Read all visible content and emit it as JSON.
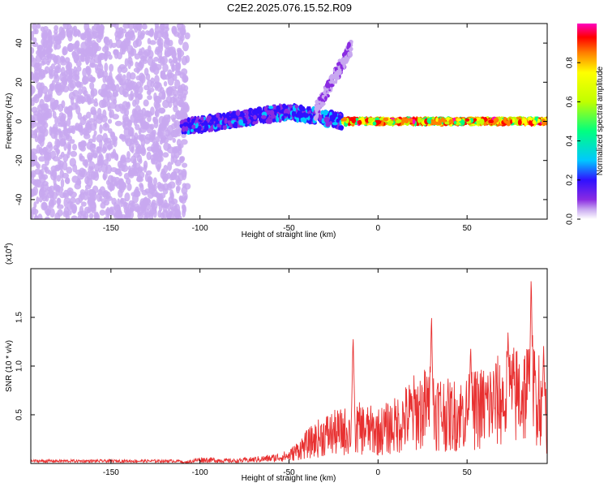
{
  "figure_title": "C2E2.2025.076.15.52.R09",
  "chart_data": [
    {
      "type": "heatmap",
      "title": "",
      "xlabel": "Height of straight line (km)",
      "ylabel": "Frequency (Hz)",
      "xlim": [
        -195,
        95
      ],
      "ylim": [
        -50,
        50
      ],
      "x_ticks": [
        -150,
        -100,
        -50,
        0,
        50
      ],
      "y_ticks": [
        -40,
        -20,
        0,
        20,
        40
      ],
      "colorbar": {
        "label": "Normalized spectral amplitude",
        "range": [
          0,
          1
        ],
        "ticks": [
          0.0,
          0.2,
          0.4,
          0.6,
          0.8
        ],
        "colors": [
          "#ffffff",
          "#c8a8f0",
          "#8a2be2",
          "#3010ff",
          "#00c8ff",
          "#00ff80",
          "#c0ff00",
          "#ffff00",
          "#ff8000",
          "#ff0000",
          "#ff00c0"
        ]
      },
      "regions": [
        {
          "desc": "noise",
          "x": [
            -195,
            -107
          ],
          "freq": [
            -50,
            50
          ],
          "amplitude": 0.1
        },
        {
          "desc": "streak",
          "x": [
            -110,
            -50
          ],
          "freq_center": [
            -3,
            5
          ],
          "amplitude": 0.3
        },
        {
          "desc": "streak",
          "x": [
            -50,
            -20
          ],
          "freq_center": [
            5,
            0
          ],
          "amplitude": 0.35
        },
        {
          "desc": "branch",
          "x": [
            -35,
            -15
          ],
          "freq_center": [
            5,
            38
          ],
          "amplitude": 0.15
        },
        {
          "desc": "line",
          "x": [
            -20,
            95
          ],
          "freq_center": [
            0,
            0
          ],
          "amplitude": 0.8
        }
      ]
    },
    {
      "type": "line",
      "title": "",
      "xlabel": "Height of straight line (km)",
      "ylabel": "SNR (10 * v/v)",
      "y_multiplier": "(x10",
      "y_multiplier_exp": "4",
      "y_multiplier_close": ")",
      "xlim": [
        -195,
        95
      ],
      "ylim": [
        0,
        2.0
      ],
      "x_ticks": [
        -150,
        -100,
        -50,
        0,
        50
      ],
      "y_ticks": [
        0.5,
        1.0,
        1.5
      ],
      "y_tick_labels": [
        "0.5",
        "1.0",
        "1.5"
      ],
      "series": [
        {
          "color": "#e83030",
          "envelope_x": [
            -195,
            -110,
            -100,
            -80,
            -60,
            -50,
            -40,
            -30,
            -20,
            -10,
            0,
            10,
            20,
            30,
            40,
            50,
            60,
            70,
            80,
            90,
            95
          ],
          "envelope_y": [
            0.01,
            0.01,
            0.06,
            0.04,
            0.08,
            0.12,
            0.3,
            0.45,
            0.5,
            0.55,
            0.5,
            0.6,
            0.8,
            0.9,
            0.75,
            0.8,
            0.9,
            1.0,
            1.1,
            1.2,
            0.6
          ],
          "peaks": [
            {
              "x": -14,
              "y": 1.28
            },
            {
              "x": 30,
              "y": 1.55
            },
            {
              "x": 52,
              "y": 1.2
            },
            {
              "x": 73,
              "y": 1.35
            },
            {
              "x": 86,
              "y": 1.92
            },
            {
              "x": 93,
              "y": 1.2
            }
          ]
        }
      ]
    }
  ]
}
